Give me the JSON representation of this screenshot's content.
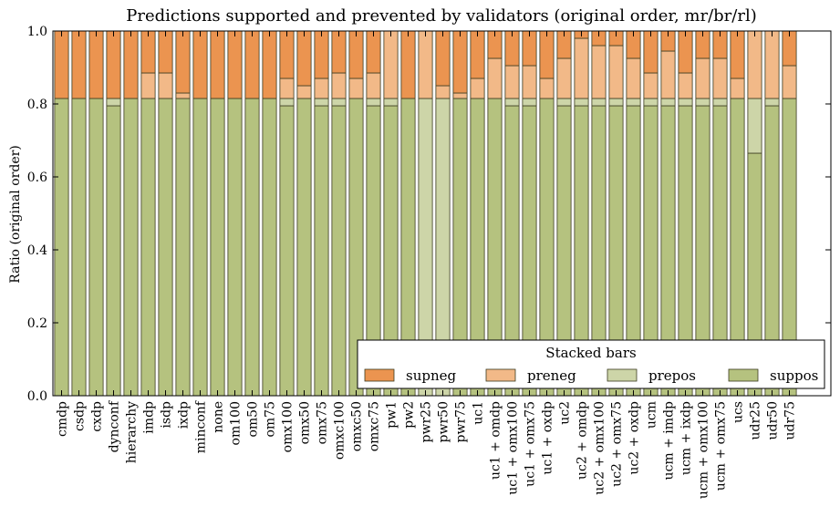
{
  "chart_data": {
    "type": "bar",
    "stacked": true,
    "title": "Predictions supported and prevented by validators (original order, mr/br/rl)",
    "xlabel": "",
    "ylabel": "Ratio (original order)",
    "ylim": [
      0,
      1.0
    ],
    "yticks": [
      "0.0",
      "0.2",
      "0.4",
      "0.6",
      "0.8",
      "1.0"
    ],
    "grid": false,
    "legend": {
      "title": "Stacked bars",
      "placement": "bottom-right"
    },
    "categories": [
      "cmdp",
      "csdp",
      "cxdp",
      "dynconf",
      "hierarchy",
      "imdp",
      "isdp",
      "ixdp",
      "minconf",
      "none",
      "om100",
      "om50",
      "om75",
      "omx100",
      "omx50",
      "omx75",
      "omxc100",
      "omxc50",
      "omxc75",
      "pw1",
      "pw2",
      "pwr25",
      "pwr50",
      "pwr75",
      "uc1",
      "uc1 + omdp",
      "uc1 + omx100",
      "uc1 + omx75",
      "uc1 + oxdp",
      "uc2",
      "uc2 + omdp",
      "uc2 + omx100",
      "uc2 + omx75",
      "uc2 + oxdp",
      "ucm",
      "ucm + imdp",
      "ucm + ixdp",
      "ucm + omx100",
      "ucm + omx75",
      "ucs",
      "udr25",
      "udr50",
      "udr75"
    ],
    "series": [
      {
        "name": "suppos",
        "color": "#b5c27f",
        "values": [
          0.815,
          0.815,
          0.815,
          0.795,
          0.815,
          0.815,
          0.815,
          0.815,
          0.815,
          0.815,
          0.815,
          0.815,
          0.815,
          0.795,
          0.815,
          0.795,
          0.795,
          0.815,
          0.795,
          0.795,
          0.815,
          0.0,
          0.0,
          0.815,
          0.815,
          0.815,
          0.795,
          0.795,
          0.815,
          0.795,
          0.795,
          0.795,
          0.795,
          0.795,
          0.795,
          0.795,
          0.795,
          0.795,
          0.795,
          0.815,
          0.665,
          0.795,
          0.815
        ]
      },
      {
        "name": "prepos",
        "color": "#cdd5a8",
        "values": [
          0.0,
          0.0,
          0.0,
          0.02,
          0.0,
          0.0,
          0.0,
          0.0,
          0.0,
          0.0,
          0.0,
          0.0,
          0.0,
          0.02,
          0.0,
          0.02,
          0.02,
          0.0,
          0.02,
          0.02,
          0.0,
          0.815,
          0.815,
          0.0,
          0.0,
          0.0,
          0.02,
          0.02,
          0.0,
          0.02,
          0.02,
          0.02,
          0.02,
          0.02,
          0.02,
          0.02,
          0.02,
          0.02,
          0.02,
          0.0,
          0.15,
          0.02,
          0.0
        ]
      },
      {
        "name": "preneg",
        "color": "#f2b988",
        "values": [
          0.0,
          0.0,
          0.0,
          0.0,
          0.0,
          0.07,
          0.07,
          0.015,
          0.0,
          0.0,
          0.0,
          0.0,
          0.0,
          0.055,
          0.035,
          0.055,
          0.07,
          0.055,
          0.07,
          0.185,
          0.0,
          0.185,
          0.035,
          0.015,
          0.055,
          0.11,
          0.09,
          0.09,
          0.055,
          0.11,
          0.165,
          0.145,
          0.145,
          0.11,
          0.07,
          0.13,
          0.07,
          0.11,
          0.11,
          0.055,
          0.185,
          0.185,
          0.09
        ]
      },
      {
        "name": "supneg",
        "color": "#eb9450",
        "values": [
          0.185,
          0.185,
          0.185,
          0.185,
          0.185,
          0.115,
          0.115,
          0.17,
          0.185,
          0.185,
          0.185,
          0.185,
          0.185,
          0.13,
          0.15,
          0.13,
          0.115,
          0.13,
          0.115,
          0.0,
          0.185,
          0.0,
          0.15,
          0.17,
          0.13,
          0.075,
          0.095,
          0.095,
          0.13,
          0.075,
          0.02,
          0.04,
          0.04,
          0.075,
          0.115,
          0.055,
          0.115,
          0.075,
          0.075,
          0.13,
          0.0,
          0.0,
          0.095
        ]
      }
    ]
  }
}
